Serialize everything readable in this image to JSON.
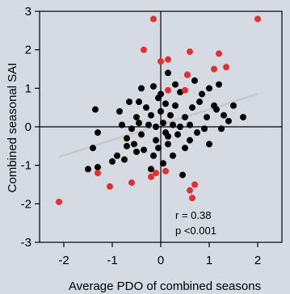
{
  "chart_data": {
    "type": "scatter",
    "xlabel": "Average PDO of combined seasons",
    "ylabel": "Combined seasonal SAI",
    "xlim": [
      -2.5,
      2.5
    ],
    "ylim": [
      -3,
      3
    ],
    "xticks": [
      -2,
      -1,
      0,
      1,
      2
    ],
    "yticks": [
      -3,
      -2,
      -1,
      0,
      1,
      2,
      3
    ],
    "grid": false,
    "zero_lines": true,
    "annotations": {
      "r": "r = 0.38",
      "p": "p <0.001"
    },
    "trend_line": {
      "x": [
        -2.1,
        2.0
      ],
      "y": [
        -0.78,
        0.85
      ],
      "color": "#c8c8c8"
    },
    "colors": {
      "black_points": "#000000",
      "red_points": "#e03030",
      "background": "#d6dbe3"
    },
    "series": [
      {
        "color": "#000000",
        "points": [
          [
            -1.4,
            -0.55
          ],
          [
            -1.5,
            -1.1
          ],
          [
            -1.3,
            -1.05
          ],
          [
            -1.35,
            0.45
          ],
          [
            -1.3,
            -0.15
          ],
          [
            -1.0,
            -0.9
          ],
          [
            -0.9,
            -0.75
          ],
          [
            -0.75,
            -0.85
          ],
          [
            -0.8,
            0.05
          ],
          [
            -0.85,
            0.4
          ],
          [
            -0.7,
            -0.3
          ],
          [
            -0.65,
            0.65
          ],
          [
            -0.6,
            -0.05
          ],
          [
            -0.55,
            -0.45
          ],
          [
            -0.5,
            -0.65
          ],
          [
            -0.5,
            0.25
          ],
          [
            -0.45,
            0.1
          ],
          [
            -0.4,
            -0.2
          ],
          [
            -0.4,
            1.0
          ],
          [
            -0.35,
            -0.6
          ],
          [
            -0.3,
            0.5
          ],
          [
            -0.25,
            0.05
          ],
          [
            -0.2,
            -1.1
          ],
          [
            -0.2,
            0.3
          ],
          [
            -0.15,
            -0.75
          ],
          [
            -0.15,
            1.05
          ],
          [
            -0.1,
            -0.35
          ],
          [
            -0.1,
            0.0
          ],
          [
            -0.05,
            -0.55
          ],
          [
            -0.05,
            0.75
          ],
          [
            0.0,
            0.85
          ],
          [
            0.0,
            0.4
          ],
          [
            0.05,
            0.1
          ],
          [
            0.05,
            -0.95
          ],
          [
            0.1,
            0.6
          ],
          [
            0.1,
            -0.15
          ],
          [
            0.15,
            1.4
          ],
          [
            0.15,
            -0.45
          ],
          [
            0.2,
            0.3
          ],
          [
            0.25,
            0.05
          ],
          [
            0.25,
            -0.75
          ],
          [
            0.3,
            0.55
          ],
          [
            0.3,
            1.1
          ],
          [
            0.35,
            -0.2
          ],
          [
            0.4,
            0.0
          ],
          [
            0.4,
            0.9
          ],
          [
            0.45,
            -1.25
          ],
          [
            0.5,
            0.25
          ],
          [
            0.5,
            -0.55
          ],
          [
            0.55,
            1.35
          ],
          [
            0.6,
            0.05
          ],
          [
            0.6,
            -0.35
          ],
          [
            0.65,
            0.5
          ],
          [
            0.7,
            1.2
          ],
          [
            0.75,
            -0.15
          ],
          [
            0.8,
            0.65
          ],
          [
            0.85,
            0.85
          ],
          [
            0.9,
            -0.05
          ],
          [
            0.95,
            0.25
          ],
          [
            1.0,
            1.0
          ],
          [
            1.0,
            -0.45
          ],
          [
            1.1,
            0.55
          ],
          [
            1.15,
            0.45
          ],
          [
            1.2,
            1.1
          ],
          [
            1.25,
            -0.05
          ],
          [
            1.3,
            0.3
          ],
          [
            1.4,
            0.15
          ],
          [
            1.5,
            0.55
          ],
          [
            1.7,
            0.25
          ],
          [
            -0.45,
            0.65
          ],
          [
            -0.7,
            -0.5
          ],
          [
            0.15,
            -0.25
          ]
        ]
      },
      {
        "color": "#e03030",
        "points": [
          [
            -2.1,
            -1.95
          ],
          [
            -1.3,
            -1.2
          ],
          [
            -1.05,
            -1.55
          ],
          [
            -0.6,
            -1.45
          ],
          [
            -0.35,
            2.0
          ],
          [
            -0.2,
            -1.3
          ],
          [
            -0.15,
            2.8
          ],
          [
            -0.1,
            -1.2
          ],
          [
            0.0,
            1.7
          ],
          [
            0.1,
            -1.15
          ],
          [
            0.15,
            1.75
          ],
          [
            0.55,
            1.35
          ],
          [
            0.6,
            1.95
          ],
          [
            0.6,
            -1.65
          ],
          [
            0.65,
            -1.85
          ],
          [
            0.7,
            -1.5
          ],
          [
            1.1,
            1.5
          ],
          [
            1.2,
            1.9
          ],
          [
            1.35,
            1.55
          ],
          [
            2.0,
            2.8
          ],
          [
            0.5,
            0.95
          ],
          [
            0.15,
            0.95
          ]
        ]
      }
    ]
  }
}
